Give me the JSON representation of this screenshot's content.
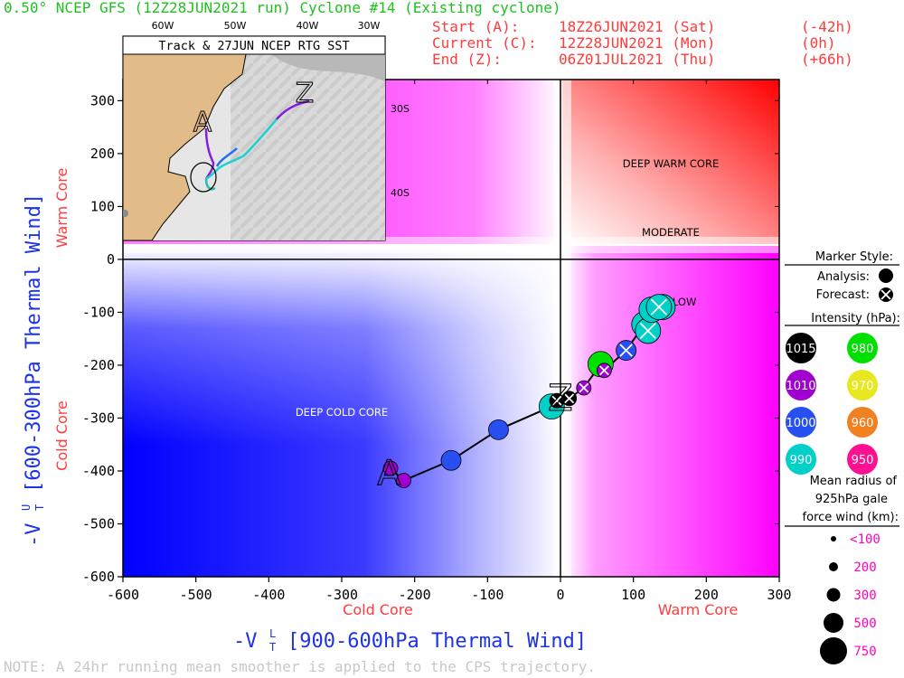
{
  "header": {
    "title": "0.50° NCEP GFS (12Z28JUN2021 run) Cyclone #14 (Existing cyclone)",
    "rows": [
      {
        "label": "Start (A):",
        "time": "18Z26JUN2021 (Sat)",
        "offset": "(-42h)"
      },
      {
        "label": "Current (C):",
        "time": "12Z28JUN2021 (Mon)",
        "offset": "(0h)"
      },
      {
        "label": "End (Z):",
        "time": "06Z01JUL2021 (Thu)",
        "offset": "(+66h)"
      }
    ]
  },
  "note": "NOTE:  A 24hr running mean smoother is applied to the CPS trajectory.",
  "chart_data": {
    "type": "scatter",
    "xlabel_main": "-V",
    "xlabel_rest": "[900-600hPa Thermal Wind]",
    "xsuper": "L",
    "ylabel_main": "-V",
    "ylabel_rest": "[600-300hPa Thermal Wind]",
    "ysuper": "U",
    "sub": "T",
    "xlim": [
      -600,
      300
    ],
    "ylim": [
      -600,
      340
    ],
    "xticks": [
      -600,
      -500,
      -400,
      -300,
      -200,
      -100,
      0,
      100,
      200,
      300
    ],
    "yticks": [
      -600,
      -500,
      -400,
      -300,
      -200,
      -100,
      0,
      100,
      200,
      300
    ],
    "x_cold_label": "Cold Core",
    "x_warm_label": "Warm Core",
    "y_cold_label": "Cold Core",
    "y_warm_label": "Warm Core",
    "regions": {
      "deep_warm": "DEEP WARM CORE",
      "moderate": "MODERATE",
      "shallow": "SHALLOW",
      "deep_cold": "DEEP COLD CORE"
    },
    "colors": {
      "cold": "#0000ff",
      "warm": "#ff0000",
      "magenta": "#ff00ff",
      "axis_blue": "#1e33e6",
      "red_text": "#ff3b3b",
      "green_title": "#20c020"
    },
    "track": [
      {
        "x": -233,
        "y": -395,
        "mslp": 1010,
        "kind": "analysis"
      },
      {
        "x": -215,
        "y": -418,
        "mslp": 1010,
        "kind": "analysis"
      },
      {
        "x": -150,
        "y": -380,
        "mslp": 1000,
        "kind": "analysis"
      },
      {
        "x": -85,
        "y": -322,
        "mslp": 1000,
        "kind": "analysis"
      },
      {
        "x": -12,
        "y": -278,
        "mslp": 990,
        "kind": "analysis"
      },
      {
        "x": -5,
        "y": -267,
        "mslp": 1015,
        "kind": "forecast"
      },
      {
        "x": 12,
        "y": -263,
        "mslp": 1015,
        "kind": "forecast"
      },
      {
        "x": 32,
        "y": -243,
        "mslp": 1010,
        "kind": "forecast"
      },
      {
        "x": 55,
        "y": -198,
        "mslp": 980,
        "kind": "analysis"
      },
      {
        "x": 60,
        "y": -210,
        "mslp": 1010,
        "kind": "forecast"
      },
      {
        "x": 90,
        "y": -172,
        "mslp": 1000,
        "kind": "forecast"
      },
      {
        "x": 115,
        "y": -123,
        "mslp": 990,
        "kind": "analysis"
      },
      {
        "x": 120,
        "y": -135,
        "mslp": 990,
        "kind": "forecast"
      },
      {
        "x": 125,
        "y": -95,
        "mslp": 990,
        "kind": "analysis"
      },
      {
        "x": 140,
        "y": -90,
        "mslp": 990,
        "kind": "analysis"
      },
      {
        "x": 135,
        "y": -90,
        "mslp": 990,
        "kind": "forecast"
      }
    ],
    "start_marker": {
      "label": "A",
      "x": -235,
      "y": -415
    },
    "end_marker": {
      "label": "Z",
      "x": 0,
      "y": -265
    },
    "legend": {
      "marker_title": "Marker Style:",
      "analysis_label": "Analysis:",
      "forecast_label": "Forecast:",
      "intensity_title": "Intensity (hPa):",
      "intensities": [
        {
          "value": "1015",
          "color": "#000000"
        },
        {
          "value": "980",
          "color": "#00e000"
        },
        {
          "value": "1010",
          "color": "#a000d0"
        },
        {
          "value": "970",
          "color": "#e8e820"
        },
        {
          "value": "1000",
          "color": "#2850f0"
        },
        {
          "value": "960",
          "color": "#f08020"
        },
        {
          "value": "990",
          "color": "#00d0c8"
        },
        {
          "value": "950",
          "color": "#ff1090"
        }
      ],
      "radius_title": [
        "Mean radius of",
        "925hPa gale",
        "force wind (km):"
      ],
      "radii": [
        "<100",
        "200",
        "300",
        "500",
        "750"
      ]
    }
  },
  "inset": {
    "title": "Track & 27JUN NCEP RTG SST",
    "lon_labels": [
      "60W",
      "50W",
      "40W",
      "30W"
    ],
    "lat_labels": [
      "30S",
      "40S"
    ],
    "start_label": "A",
    "end_label": "Z",
    "track_colors": [
      "#8020e0",
      "#2070f0",
      "#20d0d0",
      "#20c0b0"
    ]
  }
}
